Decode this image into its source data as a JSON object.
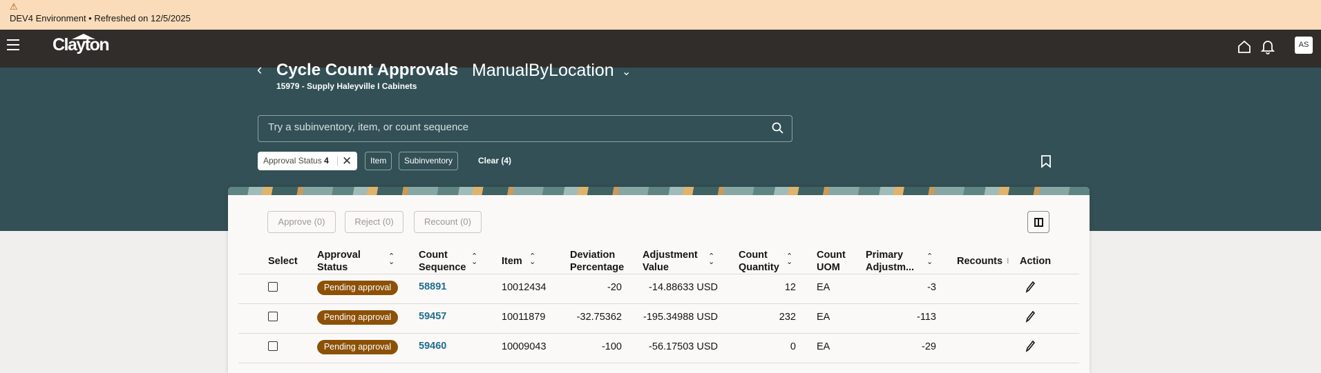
{
  "banner": {
    "icon": "warning-icon",
    "text": "DEV4 Environment • Refreshed on 12/5/2025"
  },
  "topbar": {
    "logo": "Clayton",
    "avatar": "AS"
  },
  "header": {
    "back": "‹",
    "title": "Cycle Count Approvals",
    "view": "ManualByLocation",
    "subtitle": "15979 - Supply Haleyville I Cabinets"
  },
  "search": {
    "placeholder": "Try a subinventory, item, or count sequence",
    "value": ""
  },
  "filters": {
    "chips": [
      {
        "label": "Approval Status",
        "count": "4"
      },
      {
        "label": "Item"
      },
      {
        "label": "Subinventory"
      }
    ],
    "clear": "Clear (4)"
  },
  "actions": {
    "approve": "Approve (0)",
    "reject": "Reject (0)",
    "recount": "Recount (0)"
  },
  "table": {
    "headers": {
      "select": "Select",
      "approval_status": "Approval Status",
      "count_sequence": "Count Sequence",
      "item": "Item",
      "deviation": "Deviation Percentage",
      "adjustment": "Adjustment Value",
      "count_quantity": "Count Quantity",
      "uom": "Count UOM",
      "primary": "Primary Adjustm...",
      "recounts": "Recounts",
      "action": "Action"
    },
    "rows": [
      {
        "status": "Pending approval",
        "seq": "58891",
        "item": "10012434",
        "deviation": "-20",
        "adjustment": "-14.88633 USD",
        "qty": "12",
        "uom": "EA",
        "primary": "-3",
        "recounts": ""
      },
      {
        "status": "Pending approval",
        "seq": "59457",
        "item": "10011879",
        "deviation": "-32.75362",
        "adjustment": "-195.34988 USD",
        "qty": "232",
        "uom": "EA",
        "primary": "-113",
        "recounts": ""
      },
      {
        "status": "Pending approval",
        "seq": "59460",
        "item": "10009043",
        "deviation": "-100",
        "adjustment": "-56.17503 USD",
        "qty": "0",
        "uom": "EA",
        "primary": "-29",
        "recounts": ""
      }
    ]
  },
  "colors": {
    "banner": "#fadcbb",
    "topbar": "#312d2a",
    "header": "#325055",
    "badge": "#8c5106",
    "link": "#1f6d8c"
  }
}
